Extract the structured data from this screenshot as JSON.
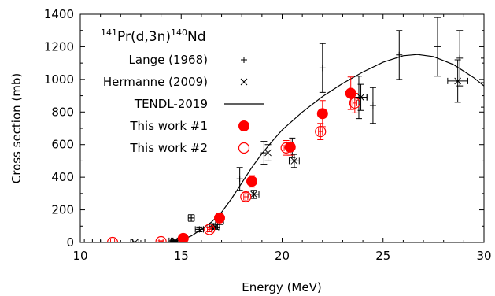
{
  "chart_data": {
    "type": "scatter",
    "title": {
      "mass_target": "141",
      "element_target": "Pr(d,3n)",
      "mass_product": "140",
      "element_product": "Nd"
    },
    "xlabel": "Energy (MeV)",
    "ylabel": "Cross section (mb)",
    "xlim": [
      10,
      30
    ],
    "ylim": [
      0,
      1400
    ],
    "xticks": [
      10,
      15,
      20,
      25,
      30
    ],
    "yticks": [
      0,
      200,
      400,
      600,
      800,
      1000,
      1200,
      1400
    ],
    "grid": false,
    "legend_position": "top-left",
    "colors": {
      "black": "#000000",
      "red": "#ff0000"
    },
    "series": [
      {
        "name": "Lange (1968)",
        "marker": "plus",
        "color": "#000000",
        "points": [
          {
            "x": 10.6,
            "y": 0,
            "xerr": 0.4,
            "yerr": 0
          },
          {
            "x": 12.9,
            "y": 0,
            "xerr": 0.3,
            "yerr": 0
          },
          {
            "x": 14.6,
            "y": 10,
            "xerr": 0.2,
            "yerr": 5
          },
          {
            "x": 15.5,
            "y": 150,
            "xerr": 0.15,
            "yerr": 20
          },
          {
            "x": 15.9,
            "y": 80,
            "xerr": 0.2,
            "yerr": 15
          },
          {
            "x": 16.6,
            "y": 100,
            "xerr": 0.2,
            "yerr": 15
          },
          {
            "x": 16.9,
            "y": 130,
            "xerr": 0.2,
            "yerr": 20
          },
          {
            "x": 17.9,
            "y": 390,
            "xerr": 0.0,
            "yerr": 70
          },
          {
            "x": 19.1,
            "y": 550,
            "xerr": 0.0,
            "yerr": 70
          },
          {
            "x": 20.5,
            "y": 580,
            "xerr": 0.0,
            "yerr": 60
          },
          {
            "x": 22.0,
            "y": 1070,
            "xerr": 0.0,
            "yerr": 150
          },
          {
            "x": 23.8,
            "y": 890,
            "xerr": 0.4,
            "yerr": 130
          },
          {
            "x": 24.5,
            "y": 840,
            "xerr": 0.0,
            "yerr": 110
          },
          {
            "x": 25.8,
            "y": 1150,
            "xerr": 0.0,
            "yerr": 150
          },
          {
            "x": 27.7,
            "y": 1200,
            "xerr": 0.0,
            "yerr": 180
          },
          {
            "x": 28.8,
            "y": 1130,
            "xerr": 0.0,
            "yerr": 170
          },
          {
            "x": 30.0,
            "y": 980,
            "xerr": 0.0,
            "yerr": 150
          }
        ]
      },
      {
        "name": "Hermanne (2009)",
        "marker": "cross",
        "color": "#000000",
        "points": [
          {
            "x": 12.7,
            "y": 0,
            "xerr": 0.2,
            "yerr": 0
          },
          {
            "x": 14.7,
            "y": 10,
            "xerr": 0.2,
            "yerr": 5
          },
          {
            "x": 16.7,
            "y": 95,
            "xerr": 0.2,
            "yerr": 15
          },
          {
            "x": 18.6,
            "y": 295,
            "xerr": 0.25,
            "yerr": 25
          },
          {
            "x": 19.3,
            "y": 550,
            "xerr": 0.0,
            "yerr": 50
          },
          {
            "x": 20.6,
            "y": 500,
            "xerr": 0.25,
            "yerr": 40
          },
          {
            "x": 23.9,
            "y": 890,
            "xerr": 0.3,
            "yerr": 80
          },
          {
            "x": 28.7,
            "y": 990,
            "xerr": 0.5,
            "yerr": 130
          }
        ]
      },
      {
        "name": "TENDL-2019",
        "marker": "line",
        "color": "#000000",
        "points": [
          {
            "x": 14.0,
            "y": 0
          },
          {
            "x": 14.5,
            "y": 4
          },
          {
            "x": 15.0,
            "y": 15
          },
          {
            "x": 15.5,
            "y": 40
          },
          {
            "x": 16.0,
            "y": 80
          },
          {
            "x": 16.5,
            "y": 125
          },
          {
            "x": 17.0,
            "y": 185
          },
          {
            "x": 17.5,
            "y": 270
          },
          {
            "x": 18.0,
            "y": 365
          },
          {
            "x": 18.5,
            "y": 460
          },
          {
            "x": 19.0,
            "y": 545
          },
          {
            "x": 19.5,
            "y": 620
          },
          {
            "x": 20.0,
            "y": 690
          },
          {
            "x": 21.0,
            "y": 800
          },
          {
            "x": 22.0,
            "y": 895
          },
          {
            "x": 23.0,
            "y": 975
          },
          {
            "x": 24.0,
            "y": 1045
          },
          {
            "x": 25.0,
            "y": 1105
          },
          {
            "x": 26.0,
            "y": 1145
          },
          {
            "x": 26.7,
            "y": 1153
          },
          {
            "x": 27.5,
            "y": 1140
          },
          {
            "x": 28.5,
            "y": 1090
          },
          {
            "x": 29.5,
            "y": 1010
          },
          {
            "x": 30.0,
            "y": 960
          }
        ]
      },
      {
        "name": "This work #1",
        "marker": "filled-circle",
        "color": "#ff0000",
        "points": [
          {
            "x": 15.1,
            "y": 25,
            "xerr": 0.1,
            "yerr": 10
          },
          {
            "x": 16.9,
            "y": 150,
            "xerr": 0.1,
            "yerr": 20
          },
          {
            "x": 18.5,
            "y": 375,
            "xerr": 0.1,
            "yerr": 35
          },
          {
            "x": 20.4,
            "y": 585,
            "xerr": 0.1,
            "yerr": 50
          },
          {
            "x": 22.0,
            "y": 790,
            "xerr": 0.1,
            "yerr": 80
          },
          {
            "x": 23.4,
            "y": 915,
            "xerr": 0.1,
            "yerr": 100
          }
        ]
      },
      {
        "name": "This work #2",
        "marker": "open-circle",
        "color": "#ff0000",
        "points": [
          {
            "x": 11.6,
            "y": 0,
            "xerr": 0.1,
            "yerr": 0
          },
          {
            "x": 14.0,
            "y": 5,
            "xerr": 0.1,
            "yerr": 5
          },
          {
            "x": 16.4,
            "y": 80,
            "xerr": 0.1,
            "yerr": 15
          },
          {
            "x": 18.2,
            "y": 280,
            "xerr": 0.1,
            "yerr": 25
          },
          {
            "x": 20.2,
            "y": 580,
            "xerr": 0.1,
            "yerr": 45
          },
          {
            "x": 21.9,
            "y": 680,
            "xerr": 0.1,
            "yerr": 50
          },
          {
            "x": 23.6,
            "y": 855,
            "xerr": 0.1,
            "yerr": 60
          }
        ]
      }
    ]
  }
}
